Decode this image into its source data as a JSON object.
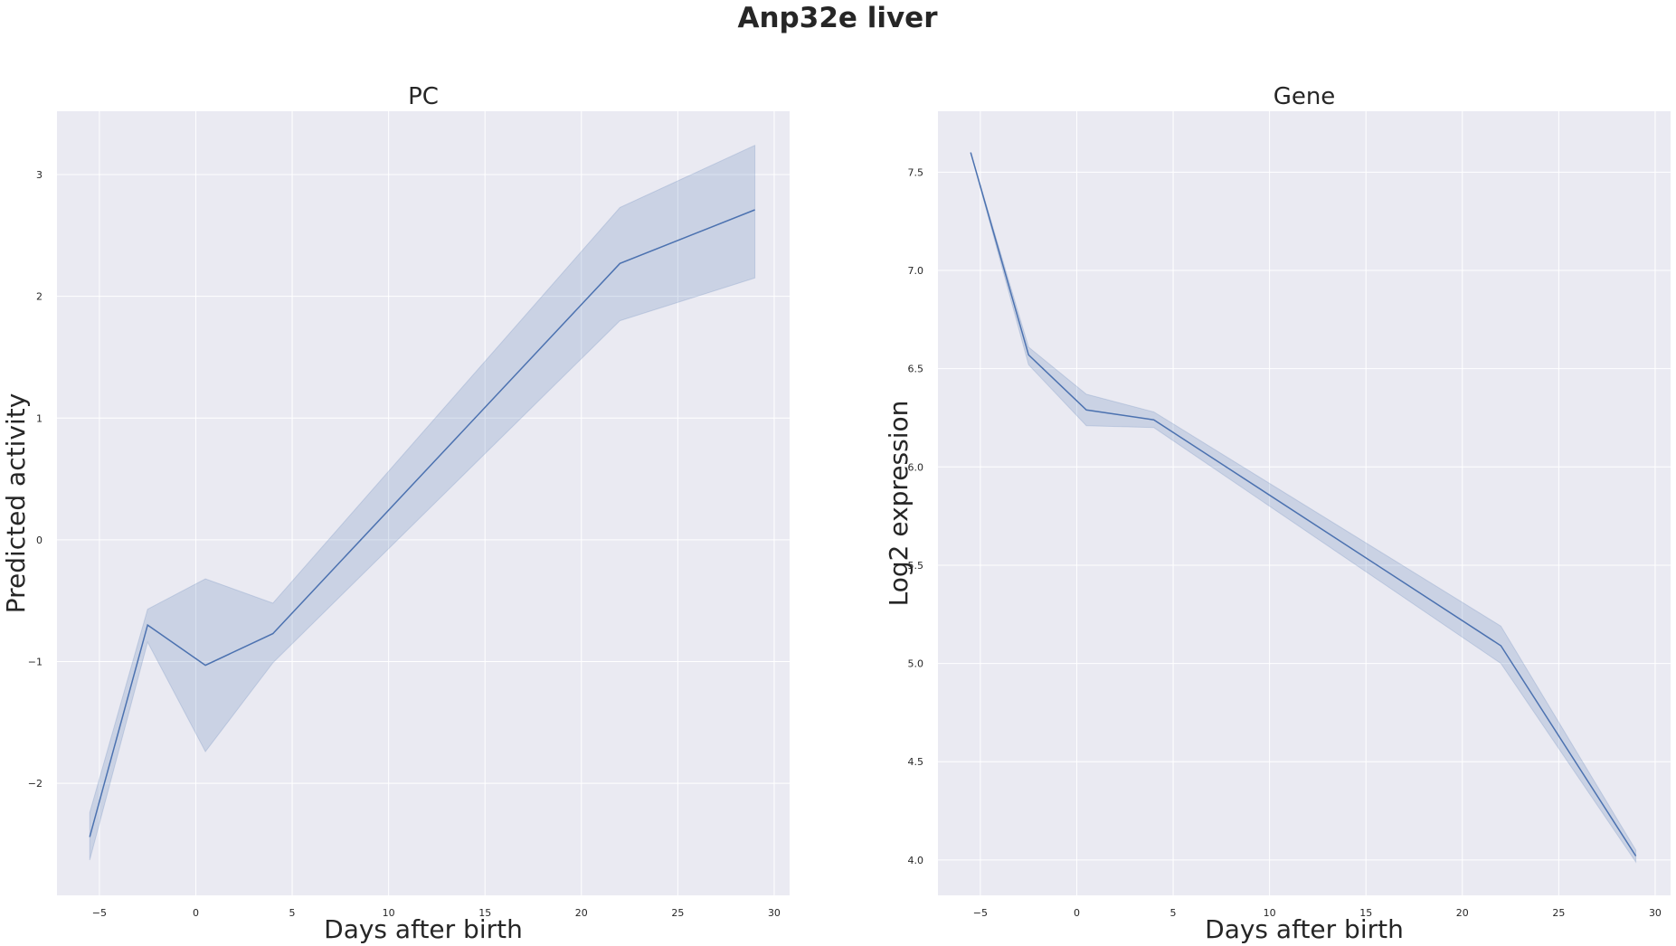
{
  "figure": {
    "suptitle": "Anp32e liver",
    "background": "#ffffff",
    "axes_facecolor": "#eaeaf2",
    "grid_color": "#ffffff",
    "line_color": "#4c72b0",
    "band_color": "#4c72b0"
  },
  "chart_data": [
    {
      "type": "line",
      "title": "PC",
      "xlabel": "Days after birth",
      "ylabel": "Predicted activity",
      "xlim": [
        -7.2,
        30.8
      ],
      "ylim": [
        -2.92,
        3.52
      ],
      "xticks": [
        -5,
        0,
        5,
        10,
        15,
        20,
        25,
        30
      ],
      "xtick_labels": [
        "−5",
        "0",
        "5",
        "10",
        "15",
        "20",
        "25",
        "30"
      ],
      "yticks": [
        -2,
        -1,
        0,
        1,
        2,
        3
      ],
      "ytick_labels": [
        "−2",
        "−1",
        "0",
        "1",
        "2",
        "3"
      ],
      "grid": true,
      "series": [
        {
          "x": [
            -5.5,
            -2.5,
            0.5,
            4,
            22,
            29
          ],
          "y": [
            -2.44,
            -0.7,
            -1.03,
            -0.77,
            2.27,
            2.71
          ],
          "ci_low": [
            -2.63,
            -0.84,
            -1.74,
            -1.01,
            1.8,
            2.15
          ],
          "ci_high": [
            -2.24,
            -0.57,
            -0.32,
            -0.52,
            2.73,
            3.24
          ]
        }
      ]
    },
    {
      "type": "line",
      "title": "Gene",
      "xlabel": "Days after birth",
      "ylabel": "Log2 expression",
      "xlim": [
        -7.2,
        30.8
      ],
      "ylim": [
        3.82,
        7.81
      ],
      "xticks": [
        -5,
        0,
        5,
        10,
        15,
        20,
        25,
        30
      ],
      "xtick_labels": [
        "−5",
        "0",
        "5",
        "10",
        "15",
        "20",
        "25",
        "30"
      ],
      "yticks": [
        4.0,
        4.5,
        5.0,
        5.5,
        6.0,
        6.5,
        7.0,
        7.5
      ],
      "ytick_labels": [
        "4.0",
        "4.5",
        "5.0",
        "5.5",
        "6.0",
        "6.5",
        "7.0",
        "7.5"
      ],
      "grid": true,
      "series": [
        {
          "x": [
            -5.5,
            -2.5,
            0.5,
            4,
            22,
            29
          ],
          "y": [
            7.6,
            6.57,
            6.29,
            6.24,
            5.09,
            4.02
          ],
          "ci_low": [
            7.6,
            6.52,
            6.21,
            6.2,
            5.0,
            3.99
          ],
          "ci_high": [
            7.6,
            6.61,
            6.37,
            6.28,
            5.19,
            4.05
          ]
        }
      ]
    }
  ]
}
